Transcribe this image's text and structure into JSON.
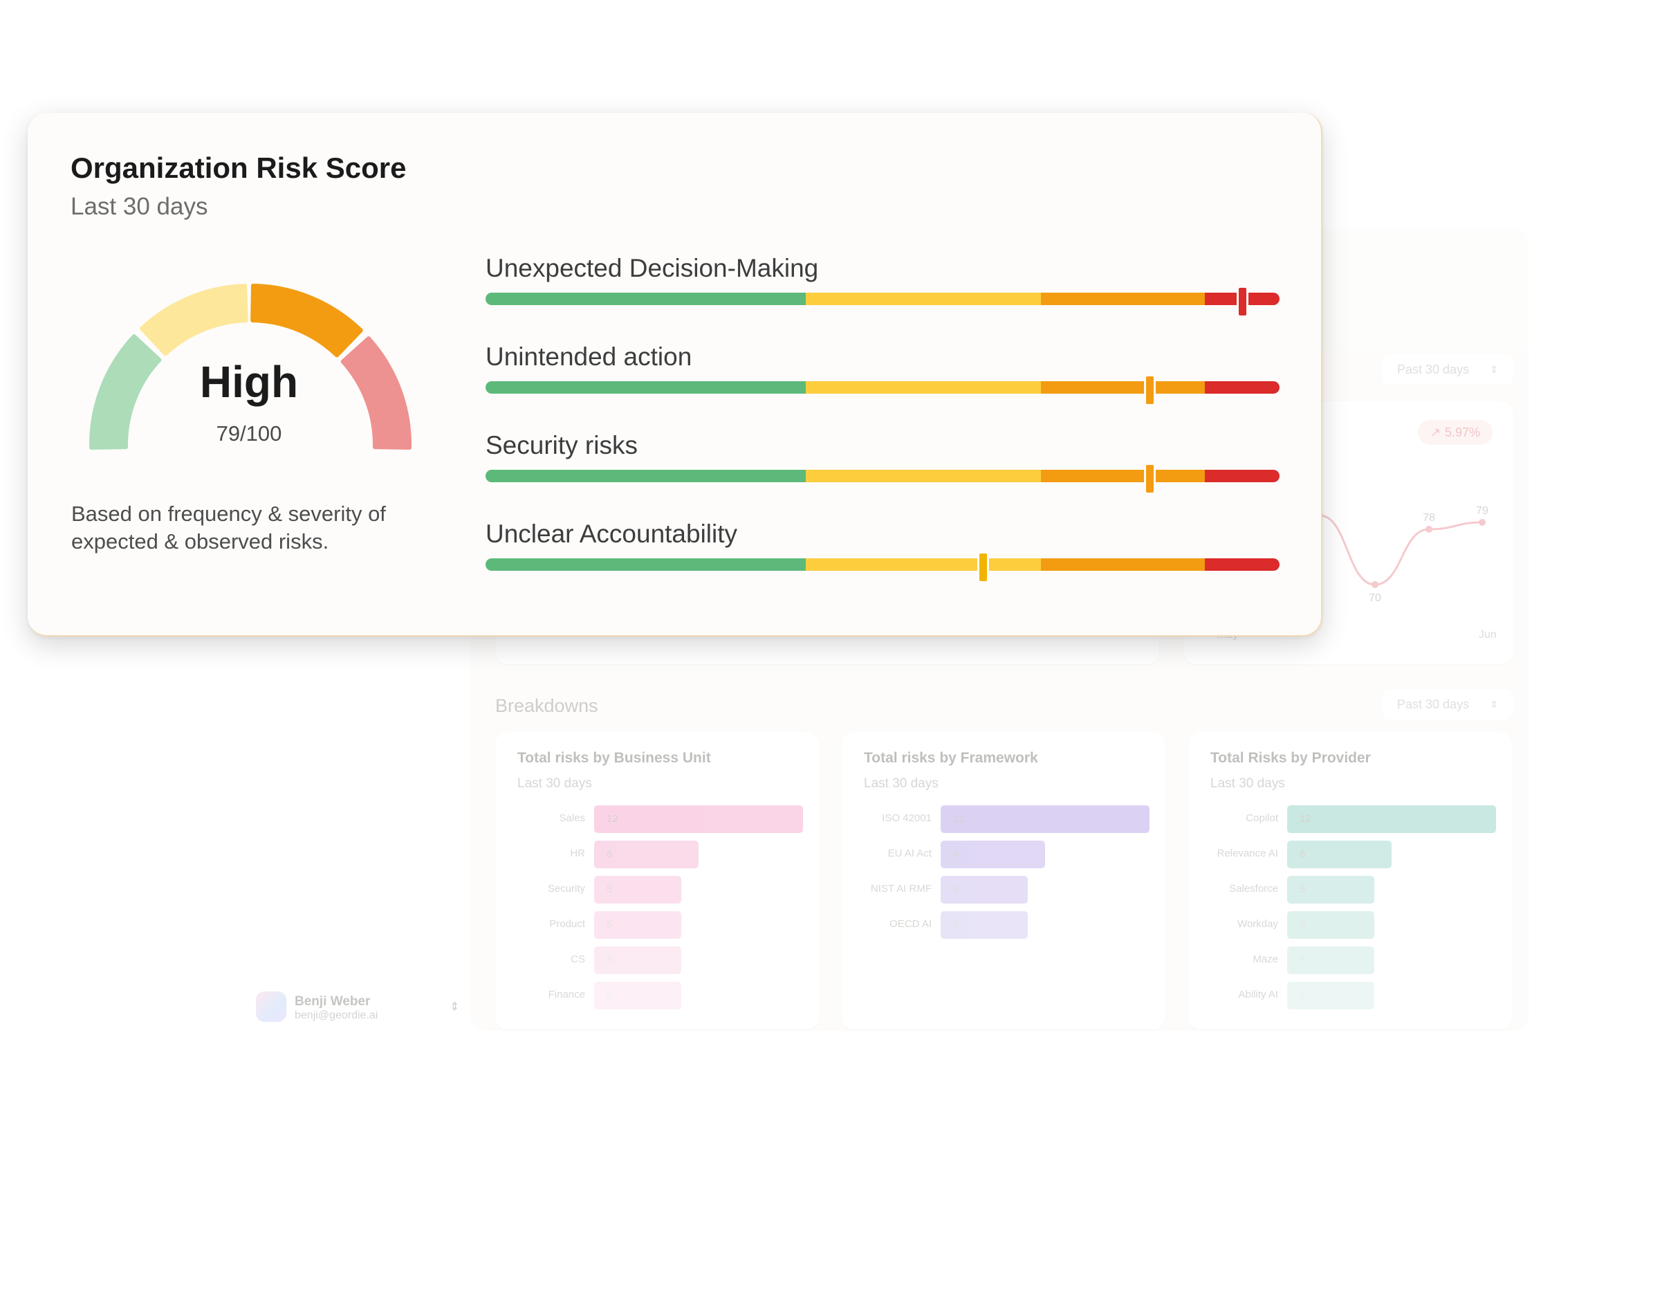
{
  "card": {
    "title": "Organization Risk Score",
    "subtitle": "Last 30 days",
    "level": "High",
    "score": 79,
    "score_text": "79/100",
    "note": "Based on frequency & severity of expected & observed risks.",
    "gauge_colors": [
      "#acdcb8",
      "#fde79a",
      "#f39c12",
      "#ee9191"
    ]
  },
  "metrics": [
    {
      "label": "Unexpected Decision-Making",
      "marker_fraction": 0.953,
      "marker_color": "#db2b2b"
    },
    {
      "label": "Unintended action",
      "marker_fraction": 0.836,
      "marker_color": "#f39c12"
    },
    {
      "label": "Security risks",
      "marker_fraction": 0.836,
      "marker_color": "#f39c12"
    },
    {
      "label": "Unclear Accountability",
      "marker_fraction": 0.626,
      "marker_color": "#f0b400"
    }
  ],
  "scale_colors": {
    "green": "#5db97a",
    "yellow": "#fdcd3d",
    "orange": "#f39c12",
    "red": "#db2b2b"
  },
  "background": {
    "period_select_1": "Past 30 days",
    "trend": {
      "change": "5.97%",
      "change_icon": "arrow-up-right-icon",
      "points": [
        {
          "label": "0",
          "value": 80
        },
        {
          "label": "70",
          "value": 70
        },
        {
          "label": "78",
          "value": 78
        },
        {
          "label": "79",
          "value": 79
        }
      ],
      "x_labels": [
        "May",
        "Jun"
      ]
    },
    "breakdowns": {
      "title": "Breakdowns",
      "period_select": "Past 30 days",
      "cards": [
        {
          "title": "Total risks by Business Unit",
          "subtitle": "Last 30 days",
          "color": "#f6a9cf",
          "rows": [
            {
              "label": "Sales",
              "value": 12
            },
            {
              "label": "HR",
              "value": 6
            },
            {
              "label": "Security",
              "value": 5
            },
            {
              "label": "Product",
              "value": 5
            },
            {
              "label": "CS",
              "value": 5
            },
            {
              "label": "Finance",
              "value": 5
            }
          ]
        },
        {
          "title": "Total risks by Framework",
          "subtitle": "Last 30 days",
          "color": "#b7a6e8",
          "rows": [
            {
              "label": "ISO 42001",
              "value": 12
            },
            {
              "label": "EU AI Act",
              "value": 6
            },
            {
              "label": "NIST AI RMF",
              "value": 5
            },
            {
              "label": "OECD AI",
              "value": 5
            }
          ]
        },
        {
          "title": "Total Risks by Provider",
          "subtitle": "Last 30 days",
          "color": "#93d2c6",
          "rows": [
            {
              "label": "Copilot",
              "value": 12
            },
            {
              "label": "Relevance AI",
              "value": 6
            },
            {
              "label": "Salesforce",
              "value": 5
            },
            {
              "label": "Workday",
              "value": 5
            },
            {
              "label": "Maze",
              "value": 5
            },
            {
              "label": "Ability AI",
              "value": 5
            }
          ]
        }
      ]
    },
    "user": {
      "name": "Benji Weber",
      "email": "benji@geordie.ai"
    }
  }
}
